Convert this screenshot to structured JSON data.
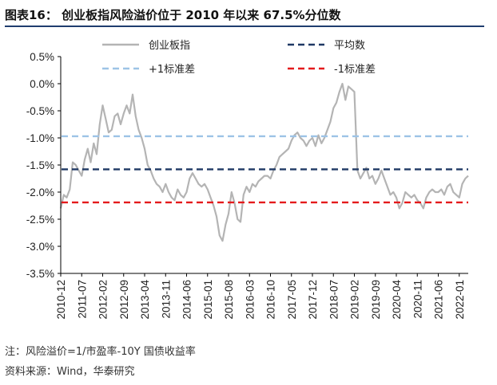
{
  "figure": {
    "title": "图表16：  创业板指风险溢价位于 2010 年以来 67.5%分位数",
    "note": "注：风险溢价=1/市盈率-10Y 国债收益率",
    "source": "资料来源：Wind，华泰研究"
  },
  "colors": {
    "title_rule": "#1f3d6e",
    "series_line": "#b4b4b4",
    "mean_line": "#1f3864",
    "plus1_line": "#9dc3e6",
    "minus1_line": "#e41a1c"
  },
  "chart_data": {
    "type": "line",
    "y_unit": "%",
    "ylim": [
      -3.5,
      0.5
    ],
    "yticks": [
      "0.5%",
      "0.0%",
      "-0.5%",
      "-1.0%",
      "-1.5%",
      "-2.0%",
      "-2.5%",
      "-3.0%",
      "-3.5%"
    ],
    "xticks": [
      "2010-12",
      "2011-07",
      "2012-02",
      "2012-09",
      "2013-04",
      "2013-11",
      "2014-06",
      "2015-01",
      "2015-08",
      "2016-03",
      "2016-10",
      "2017-05",
      "2017-12",
      "2018-07",
      "2019-02",
      "2019-09",
      "2020-04",
      "2020-11",
      "2021-06",
      "2022-01"
    ],
    "xlim": [
      "2010-12",
      "2022-04"
    ],
    "legend_position": "top",
    "series": [
      {
        "name": "创业板指",
        "style": "solid",
        "points": [
          [
            "2010-12",
            -2.3
          ],
          [
            "2011-01",
            -2.05
          ],
          [
            "2011-02",
            -2.1
          ],
          [
            "2011-03",
            -1.95
          ],
          [
            "2011-04",
            -1.45
          ],
          [
            "2011-05",
            -1.5
          ],
          [
            "2011-06",
            -1.6
          ],
          [
            "2011-07",
            -1.7
          ],
          [
            "2011-08",
            -1.4
          ],
          [
            "2011-09",
            -1.2
          ],
          [
            "2011-10",
            -1.45
          ],
          [
            "2011-11",
            -1.1
          ],
          [
            "2011-12",
            -1.3
          ],
          [
            "2012-01",
            -0.75
          ],
          [
            "2012-02",
            -0.4
          ],
          [
            "2012-03",
            -0.65
          ],
          [
            "2012-04",
            -0.9
          ],
          [
            "2012-05",
            -0.85
          ],
          [
            "2012-06",
            -0.6
          ],
          [
            "2012-07",
            -0.55
          ],
          [
            "2012-08",
            -0.75
          ],
          [
            "2012-09",
            -0.55
          ],
          [
            "2012-10",
            -0.4
          ],
          [
            "2012-11",
            -0.55
          ],
          [
            "2012-12",
            -0.2
          ],
          [
            "2013-01",
            -0.6
          ],
          [
            "2013-02",
            -0.85
          ],
          [
            "2013-03",
            -1.0
          ],
          [
            "2013-04",
            -1.2
          ],
          [
            "2013-05",
            -1.5
          ],
          [
            "2013-06",
            -1.6
          ],
          [
            "2013-07",
            -1.75
          ],
          [
            "2013-08",
            -1.85
          ],
          [
            "2013-09",
            -1.9
          ],
          [
            "2013-10",
            -2.0
          ],
          [
            "2013-11",
            -1.85
          ],
          [
            "2013-12",
            -2.0
          ],
          [
            "2014-01",
            -2.1
          ],
          [
            "2014-02",
            -2.15
          ],
          [
            "2014-03",
            -1.95
          ],
          [
            "2014-04",
            -2.05
          ],
          [
            "2014-05",
            -2.1
          ],
          [
            "2014-06",
            -2.0
          ],
          [
            "2014-07",
            -1.75
          ],
          [
            "2014-08",
            -1.65
          ],
          [
            "2014-09",
            -1.75
          ],
          [
            "2014-10",
            -1.85
          ],
          [
            "2014-11",
            -1.9
          ],
          [
            "2014-12",
            -1.85
          ],
          [
            "2015-01",
            -1.95
          ],
          [
            "2015-02",
            -2.1
          ],
          [
            "2015-03",
            -2.25
          ],
          [
            "2015-04",
            -2.45
          ],
          [
            "2015-05",
            -2.8
          ],
          [
            "2015-06",
            -2.9
          ],
          [
            "2015-07",
            -2.6
          ],
          [
            "2015-08",
            -2.4
          ],
          [
            "2015-09",
            -2.0
          ],
          [
            "2015-10",
            -2.2
          ],
          [
            "2015-11",
            -2.5
          ],
          [
            "2015-12",
            -2.55
          ],
          [
            "2016-01",
            -2.05
          ],
          [
            "2016-02",
            -1.9
          ],
          [
            "2016-03",
            -2.0
          ],
          [
            "2016-04",
            -1.85
          ],
          [
            "2016-05",
            -1.9
          ],
          [
            "2016-06",
            -1.8
          ],
          [
            "2016-07",
            -1.75
          ],
          [
            "2016-08",
            -1.7
          ],
          [
            "2016-09",
            -1.7
          ],
          [
            "2016-10",
            -1.75
          ],
          [
            "2016-11",
            -1.6
          ],
          [
            "2016-12",
            -1.5
          ],
          [
            "2017-01",
            -1.35
          ],
          [
            "2017-02",
            -1.3
          ],
          [
            "2017-03",
            -1.25
          ],
          [
            "2017-04",
            -1.2
          ],
          [
            "2017-05",
            -1.05
          ],
          [
            "2017-06",
            -0.95
          ],
          [
            "2017-07",
            -0.9
          ],
          [
            "2017-08",
            -1.0
          ],
          [
            "2017-09",
            -1.05
          ],
          [
            "2017-10",
            -1.15
          ],
          [
            "2017-11",
            -1.05
          ],
          [
            "2017-12",
            -1.0
          ],
          [
            "2018-01",
            -1.15
          ],
          [
            "2018-02",
            -0.95
          ],
          [
            "2018-03",
            -1.1
          ],
          [
            "2018-04",
            -1.0
          ],
          [
            "2018-05",
            -0.85
          ],
          [
            "2018-06",
            -0.7
          ],
          [
            "2018-07",
            -0.45
          ],
          [
            "2018-08",
            -0.35
          ],
          [
            "2018-09",
            -0.15
          ],
          [
            "2018-10",
            0.0
          ],
          [
            "2018-11",
            -0.3
          ],
          [
            "2018-12",
            -0.05
          ],
          [
            "2019-01",
            -0.1
          ],
          [
            "2019-02",
            -0.15
          ],
          [
            "2019-03",
            -1.6
          ],
          [
            "2019-04",
            -1.75
          ],
          [
            "2019-05",
            -1.65
          ],
          [
            "2019-06",
            -1.55
          ],
          [
            "2019-07",
            -1.75
          ],
          [
            "2019-08",
            -1.7
          ],
          [
            "2019-09",
            -1.85
          ],
          [
            "2019-10",
            -1.75
          ],
          [
            "2019-11",
            -1.6
          ],
          [
            "2019-12",
            -1.75
          ],
          [
            "2020-01",
            -1.9
          ],
          [
            "2020-02",
            -2.05
          ],
          [
            "2020-03",
            -2.0
          ],
          [
            "2020-04",
            -2.1
          ],
          [
            "2020-05",
            -2.3
          ],
          [
            "2020-06",
            -2.2
          ],
          [
            "2020-07",
            -2.0
          ],
          [
            "2020-08",
            -2.05
          ],
          [
            "2020-09",
            -2.1
          ],
          [
            "2020-10",
            -2.05
          ],
          [
            "2020-11",
            -2.15
          ],
          [
            "2020-12",
            -2.2
          ],
          [
            "2021-01",
            -2.3
          ],
          [
            "2021-02",
            -2.1
          ],
          [
            "2021-03",
            -2.0
          ],
          [
            "2021-04",
            -1.95
          ],
          [
            "2021-05",
            -2.0
          ],
          [
            "2021-06",
            -2.0
          ],
          [
            "2021-07",
            -1.95
          ],
          [
            "2021-08",
            -2.05
          ],
          [
            "2021-09",
            -1.9
          ],
          [
            "2021-10",
            -1.85
          ],
          [
            "2021-11",
            -2.0
          ],
          [
            "2021-12",
            -2.05
          ],
          [
            "2022-01",
            -2.1
          ],
          [
            "2022-02",
            -1.85
          ],
          [
            "2022-03",
            -1.75
          ],
          [
            "2022-04",
            -1.7
          ]
        ]
      },
      {
        "name": "平均数",
        "style": "dashed",
        "value": -1.58
      },
      {
        "name": "+1标准差",
        "style": "dashed",
        "value": -0.97
      },
      {
        "name": "-1标准差",
        "style": "dashed",
        "value": -2.19
      }
    ]
  }
}
